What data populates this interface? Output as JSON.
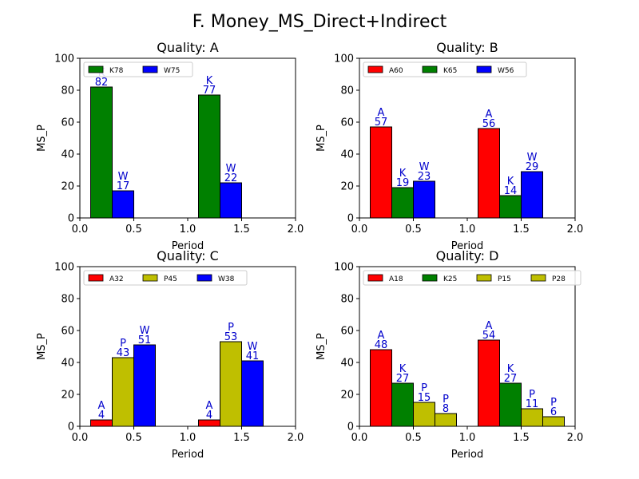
{
  "title": "F. Money_MS_Direct+Indirect",
  "colors": {
    "A": "#ff0000",
    "K": "#008000",
    "W": "#0000ff",
    "P": "#bfbf00",
    "label": "#0000cc"
  },
  "chart_data": [
    {
      "type": "bar",
      "title": "Quality: A",
      "xlabel": "Period",
      "ylabel": "MS_P",
      "xlim": [
        0,
        2.0
      ],
      "ylim": [
        0,
        100
      ],
      "xticks": [
        "0.0",
        "0.5",
        "1.0",
        "1.5",
        "2.0"
      ],
      "yticks": [
        "0",
        "20",
        "40",
        "60",
        "80",
        "100"
      ],
      "legend_position": "top-left",
      "series": [
        {
          "name": "K78",
          "letter": "K",
          "color": "#008000",
          "values": [
            82,
            77
          ]
        },
        {
          "name": "W75",
          "letter": "W",
          "color": "#0000ff",
          "values": [
            17,
            22
          ]
        }
      ]
    },
    {
      "type": "bar",
      "title": "Quality: B",
      "xlabel": "Period",
      "ylabel": "MS_P",
      "xlim": [
        0,
        2.0
      ],
      "ylim": [
        0,
        100
      ],
      "xticks": [
        "0.0",
        "0.5",
        "1.0",
        "1.5",
        "2.0"
      ],
      "yticks": [
        "0",
        "20",
        "40",
        "60",
        "80",
        "100"
      ],
      "legend_position": "top-left",
      "series": [
        {
          "name": "A60",
          "letter": "A",
          "color": "#ff0000",
          "values": [
            57,
            56
          ]
        },
        {
          "name": "K65",
          "letter": "K",
          "color": "#008000",
          "values": [
            19,
            14
          ]
        },
        {
          "name": "W56",
          "letter": "W",
          "color": "#0000ff",
          "values": [
            23,
            29
          ]
        }
      ]
    },
    {
      "type": "bar",
      "title": "Quality: C",
      "xlabel": "Period",
      "ylabel": "MS_P",
      "xlim": [
        0,
        2.0
      ],
      "ylim": [
        0,
        100
      ],
      "xticks": [
        "0.0",
        "0.5",
        "1.0",
        "1.5",
        "2.0"
      ],
      "yticks": [
        "0",
        "20",
        "40",
        "60",
        "80",
        "100"
      ],
      "legend_position": "top-left",
      "series": [
        {
          "name": "A32",
          "letter": "A",
          "color": "#ff0000",
          "values": [
            4,
            4
          ]
        },
        {
          "name": "P45",
          "letter": "P",
          "color": "#bfbf00",
          "values": [
            43,
            53
          ]
        },
        {
          "name": "W38",
          "letter": "W",
          "color": "#0000ff",
          "values": [
            51,
            41
          ]
        }
      ]
    },
    {
      "type": "bar",
      "title": "Quality: D",
      "xlabel": "Period",
      "ylabel": "MS_P",
      "xlim": [
        0,
        2.0
      ],
      "ylim": [
        0,
        100
      ],
      "xticks": [
        "0.0",
        "0.5",
        "1.0",
        "1.5",
        "2.0"
      ],
      "yticks": [
        "0",
        "20",
        "40",
        "60",
        "80",
        "100"
      ],
      "legend_position": "top-left",
      "series": [
        {
          "name": "A18",
          "letter": "A",
          "color": "#ff0000",
          "values": [
            48,
            54
          ]
        },
        {
          "name": "K25",
          "letter": "K",
          "color": "#008000",
          "values": [
            27,
            27
          ]
        },
        {
          "name": "P15",
          "letter": "P",
          "color": "#bfbf00",
          "values": [
            15,
            11
          ]
        },
        {
          "name": "P28",
          "letter": "P",
          "color": "#bfbf00",
          "values": [
            8,
            6
          ]
        }
      ]
    }
  ]
}
